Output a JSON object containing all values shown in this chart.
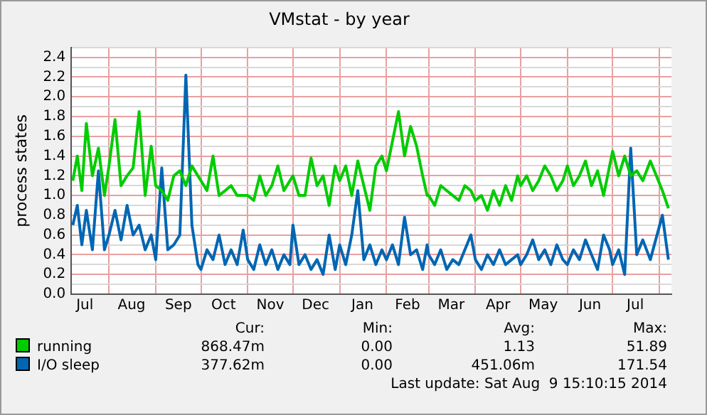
{
  "chart_data": {
    "type": "line",
    "title": "VMstat - by year",
    "ylabel": "process states",
    "x": [
      "2013-07-08",
      "2013-07-11",
      "2013-07-14",
      "2013-07-17",
      "2013-07-21",
      "2013-07-25",
      "2013-07-29",
      "2013-08-01",
      "2013-08-05",
      "2013-08-09",
      "2013-08-13",
      "2013-08-17",
      "2013-08-21",
      "2013-08-25",
      "2013-08-29",
      "2013-09-01",
      "2013-09-05",
      "2013-09-09",
      "2013-09-13",
      "2013-09-17",
      "2013-09-21",
      "2013-09-25",
      "2013-09-29",
      "2013-10-01",
      "2013-10-05",
      "2013-10-09",
      "2013-10-13",
      "2013-10-17",
      "2013-10-21",
      "2013-10-25",
      "2013-10-29",
      "2013-11-01",
      "2013-11-05",
      "2013-11-09",
      "2013-11-13",
      "2013-11-17",
      "2013-11-21",
      "2013-11-25",
      "2013-11-29",
      "2013-12-01",
      "2013-12-05",
      "2013-12-09",
      "2013-12-13",
      "2013-12-17",
      "2013-12-21",
      "2013-12-25",
      "2013-12-29",
      "2014-01-01",
      "2014-01-05",
      "2014-01-09",
      "2014-01-13",
      "2014-01-17",
      "2014-01-21",
      "2014-01-25",
      "2014-01-29",
      "2014-02-01",
      "2014-02-05",
      "2014-02-09",
      "2014-02-13",
      "2014-02-17",
      "2014-02-21",
      "2014-02-25",
      "2014-02-28",
      "2014-03-01",
      "2014-03-05",
      "2014-03-09",
      "2014-03-13",
      "2014-03-17",
      "2014-03-21",
      "2014-03-25",
      "2014-03-29",
      "2014-04-01",
      "2014-04-05",
      "2014-04-09",
      "2014-04-13",
      "2014-04-17",
      "2014-04-21",
      "2014-04-25",
      "2014-04-29",
      "2014-05-01",
      "2014-05-05",
      "2014-05-09",
      "2014-05-13",
      "2014-05-17",
      "2014-05-21",
      "2014-05-25",
      "2014-05-29",
      "2014-06-01",
      "2014-06-05",
      "2014-06-09",
      "2014-06-13",
      "2014-06-17",
      "2014-06-21",
      "2014-06-25",
      "2014-06-29",
      "2014-07-01",
      "2014-07-05",
      "2014-07-09",
      "2014-07-13",
      "2014-07-17",
      "2014-07-21",
      "2014-07-26",
      "2014-08-03",
      "2014-08-07"
    ],
    "series": [
      {
        "name": "running",
        "color": "#00cc00",
        "values": [
          1.15,
          1.4,
          1.05,
          1.73,
          1.2,
          1.48,
          1.0,
          1.3,
          1.77,
          1.1,
          1.2,
          1.28,
          1.85,
          1.0,
          1.5,
          1.1,
          1.05,
          0.95,
          1.2,
          1.25,
          1.1,
          1.3,
          1.2,
          1.15,
          1.05,
          1.4,
          1.0,
          1.05,
          1.1,
          1.0,
          1.0,
          1.0,
          0.95,
          1.2,
          1.0,
          1.1,
          1.3,
          1.05,
          1.15,
          1.2,
          1.0,
          1.0,
          1.38,
          1.1,
          1.2,
          0.9,
          1.3,
          1.15,
          1.3,
          1.0,
          1.35,
          1.1,
          0.85,
          1.3,
          1.4,
          1.25,
          1.55,
          1.85,
          1.4,
          1.7,
          1.5,
          1.2,
          1.0,
          1.0,
          0.9,
          1.1,
          1.05,
          1.0,
          0.95,
          1.1,
          1.05,
          0.95,
          1.0,
          0.85,
          1.05,
          0.9,
          1.1,
          0.95,
          1.2,
          1.1,
          1.2,
          1.05,
          1.15,
          1.3,
          1.2,
          1.05,
          1.15,
          1.3,
          1.1,
          1.2,
          1.35,
          1.1,
          1.25,
          1.0,
          1.3,
          1.45,
          1.2,
          1.4,
          1.2,
          1.25,
          1.15,
          1.35,
          1.05,
          0.87
        ]
      },
      {
        "name": "I/O sleep",
        "color": "#0066b3",
        "values": [
          0.7,
          0.9,
          0.5,
          0.85,
          0.45,
          1.25,
          0.45,
          0.6,
          0.85,
          0.55,
          0.9,
          0.6,
          0.7,
          0.45,
          0.6,
          0.35,
          1.28,
          0.45,
          0.5,
          0.6,
          2.22,
          0.7,
          0.3,
          0.25,
          0.45,
          0.35,
          0.6,
          0.3,
          0.45,
          0.3,
          0.65,
          0.35,
          0.25,
          0.5,
          0.3,
          0.45,
          0.25,
          0.4,
          0.3,
          0.7,
          0.3,
          0.4,
          0.25,
          0.35,
          0.2,
          0.6,
          0.25,
          0.5,
          0.3,
          0.6,
          1.05,
          0.35,
          0.5,
          0.3,
          0.45,
          0.35,
          0.5,
          0.3,
          0.78,
          0.4,
          0.45,
          0.25,
          0.5,
          0.4,
          0.3,
          0.45,
          0.25,
          0.35,
          0.3,
          0.45,
          0.6,
          0.35,
          0.25,
          0.4,
          0.3,
          0.45,
          0.3,
          0.35,
          0.4,
          0.3,
          0.4,
          0.55,
          0.35,
          0.45,
          0.3,
          0.5,
          0.35,
          0.3,
          0.45,
          0.35,
          0.55,
          0.4,
          0.25,
          0.6,
          0.45,
          0.3,
          0.45,
          0.2,
          1.48,
          0.4,
          0.55,
          0.35,
          0.8,
          0.35
        ]
      }
    ],
    "xlim": [
      "2013-07-07",
      "2014-08-09"
    ],
    "xticks": [
      {
        "value": "2013-07-16",
        "label": "Jul"
      },
      {
        "value": "2013-08-01",
        "label": null
      },
      {
        "value": "2013-08-16",
        "label": "Aug"
      },
      {
        "value": "2013-09-01",
        "label": null
      },
      {
        "value": "2013-09-16",
        "label": "Sep"
      },
      {
        "value": "2013-10-01",
        "label": null
      },
      {
        "value": "2013-10-16",
        "label": "Oct"
      },
      {
        "value": "2013-11-01",
        "label": null
      },
      {
        "value": "2013-11-16",
        "label": "Nov"
      },
      {
        "value": "2013-12-01",
        "label": null
      },
      {
        "value": "2013-12-16",
        "label": "Dec"
      },
      {
        "value": "2014-01-01",
        "label": null
      },
      {
        "value": "2014-01-16",
        "label": "Jan"
      },
      {
        "value": "2014-02-01",
        "label": null
      },
      {
        "value": "2014-02-15",
        "label": "Feb"
      },
      {
        "value": "2014-03-01",
        "label": null
      },
      {
        "value": "2014-03-16",
        "label": "Mar"
      },
      {
        "value": "2014-04-01",
        "label": null
      },
      {
        "value": "2014-04-16",
        "label": "Apr"
      },
      {
        "value": "2014-05-01",
        "label": null
      },
      {
        "value": "2014-05-16",
        "label": "May"
      },
      {
        "value": "2014-06-01",
        "label": null
      },
      {
        "value": "2014-06-16",
        "label": "Jun"
      },
      {
        "value": "2014-07-01",
        "label": null
      },
      {
        "value": "2014-07-16",
        "label": "Jul"
      },
      {
        "value": "2014-08-01",
        "label": null
      }
    ],
    "ylim": [
      0,
      2.5
    ],
    "yticks": [
      {
        "value": 0,
        "label": "0.0"
      },
      {
        "value": 0.1,
        "label": null
      },
      {
        "value": 0.2,
        "label": "0.2"
      },
      {
        "value": 0.3,
        "label": null
      },
      {
        "value": 0.4,
        "label": "0.4"
      },
      {
        "value": 0.5,
        "label": null
      },
      {
        "value": 0.6,
        "label": "0.6"
      },
      {
        "value": 0.7,
        "label": null
      },
      {
        "value": 0.8,
        "label": "0.8"
      },
      {
        "value": 0.9,
        "label": null
      },
      {
        "value": 1,
        "label": "1.0"
      },
      {
        "value": 1.1,
        "label": null
      },
      {
        "value": 1.2,
        "label": "1.2"
      },
      {
        "value": 1.3,
        "label": null
      },
      {
        "value": 1.4,
        "label": "1.4"
      },
      {
        "value": 1.5,
        "label": null
      },
      {
        "value": 1.6,
        "label": "1.6"
      },
      {
        "value": 1.7,
        "label": null
      },
      {
        "value": 1.8,
        "label": "1.8"
      },
      {
        "value": 1.9,
        "label": null
      },
      {
        "value": 2,
        "label": "2.0"
      },
      {
        "value": 2.1,
        "label": null
      },
      {
        "value": 2.2,
        "label": "2.2"
      },
      {
        "value": 2.3,
        "label": null
      },
      {
        "value": 2.4,
        "label": "2.4"
      },
      {
        "value": 2.5,
        "label": null
      }
    ],
    "grid": true,
    "legend": "bottom",
    "marker": "none",
    "line_style": "solid",
    "annotations": [
      "Cur:",
      "Min:",
      "Avg:",
      "Max:",
      "868.47m",
      "0.00",
      "1.13",
      "51.89",
      "377.62m",
      "0.00",
      "451.06m",
      "171.54",
      "Last update: Sat Aug  9 15:10:15 2014"
    ]
  }
}
